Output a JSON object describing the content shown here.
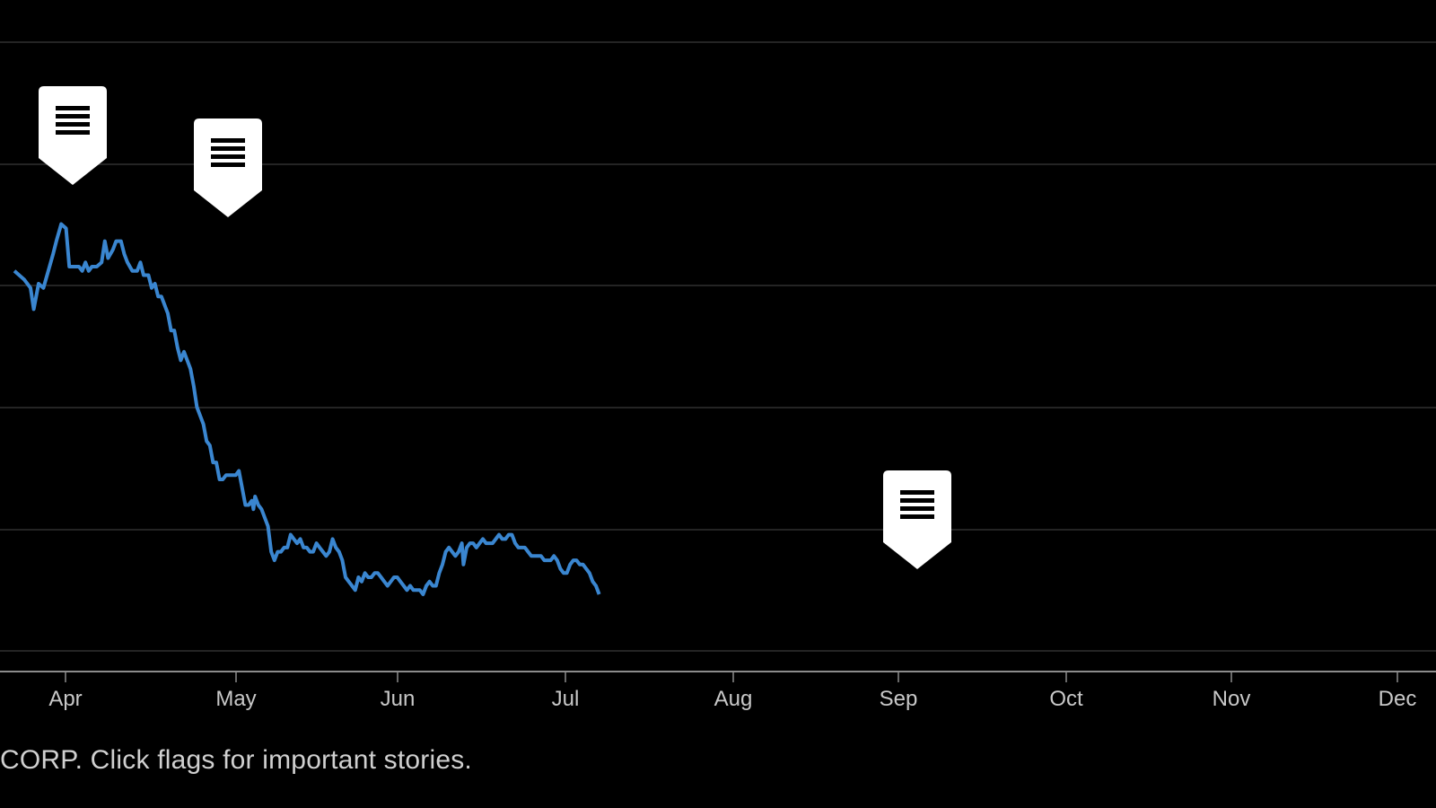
{
  "caption": "CORP. Click flags for important stories.",
  "colors": {
    "background": "#000000",
    "line": "#3a86d0",
    "grid": "#3a3a3a",
    "axis": "#8c8c8c",
    "text": "#c8c8c8",
    "flag": "#ffffff",
    "flag_icon": "#000000"
  },
  "chart_data": {
    "type": "line",
    "title": "",
    "xlabel": "",
    "ylabel": "",
    "x_tick_labels": [
      "Apr",
      "May",
      "Jun",
      "Jul",
      "Aug",
      "Sep",
      "Oct",
      "Nov",
      "Dec"
    ],
    "y_axis_labels_visible": false,
    "grid": true,
    "ylim": [
      0,
      100
    ],
    "flags": [
      {
        "date": "Apr 1",
        "icon": "news-flag-icon"
      },
      {
        "date": "Apr 30",
        "icon": "news-flag-icon"
      },
      {
        "date": "Sep 5",
        "icon": "news-flag-icon"
      }
    ],
    "series": [
      {
        "values": [
          [
            -30,
            76
          ],
          [
            -24,
            74
          ],
          [
            -20,
            72
          ],
          [
            -18,
            67
          ],
          [
            -15,
            73
          ],
          [
            -12,
            72
          ],
          [
            -9,
            76
          ],
          [
            -6,
            80
          ],
          [
            -4,
            83
          ],
          [
            -1,
            87
          ],
          [
            2,
            86
          ],
          [
            4,
            77
          ],
          [
            7,
            77
          ],
          [
            10,
            77
          ],
          [
            12,
            76
          ],
          [
            14,
            78
          ],
          [
            16,
            76
          ],
          [
            18,
            77
          ],
          [
            21,
            77
          ],
          [
            24,
            78
          ],
          [
            26,
            83
          ],
          [
            28,
            79
          ],
          [
            31,
            81
          ],
          [
            33,
            83
          ],
          [
            36,
            83
          ],
          [
            38,
            80
          ],
          [
            40,
            78
          ],
          [
            43,
            76
          ],
          [
            46,
            76
          ],
          [
            48,
            78
          ],
          [
            50,
            75
          ],
          [
            53,
            75
          ],
          [
            55,
            72
          ],
          [
            57,
            73
          ],
          [
            59,
            70
          ],
          [
            61,
            70
          ],
          [
            63,
            68
          ],
          [
            65,
            66
          ],
          [
            67,
            62
          ],
          [
            69,
            62
          ],
          [
            71,
            58
          ],
          [
            73,
            55
          ],
          [
            75,
            57
          ],
          [
            77,
            55
          ],
          [
            79,
            53
          ],
          [
            81,
            49
          ],
          [
            83,
            44
          ],
          [
            85,
            42
          ],
          [
            87,
            40
          ],
          [
            89,
            36
          ],
          [
            91,
            35
          ],
          [
            93,
            31
          ],
          [
            95,
            31
          ],
          [
            97,
            27
          ],
          [
            99,
            27
          ],
          [
            101,
            28
          ],
          [
            103,
            28
          ],
          [
            105,
            28
          ],
          [
            107,
            28
          ],
          [
            109,
            29
          ],
          [
            111,
            25
          ],
          [
            113,
            21
          ],
          [
            115,
            21
          ],
          [
            117,
            22
          ],
          [
            118,
            20
          ],
          [
            119,
            23
          ],
          [
            121,
            21
          ],
          [
            123,
            20
          ],
          [
            125,
            18
          ],
          [
            127,
            16
          ],
          [
            129,
            10
          ],
          [
            131,
            8
          ],
          [
            133,
            10
          ],
          [
            135,
            10
          ],
          [
            137,
            11
          ],
          [
            139,
            11
          ],
          [
            141,
            14
          ],
          [
            143,
            13
          ],
          [
            145,
            12
          ],
          [
            147,
            13
          ],
          [
            149,
            11
          ],
          [
            151,
            11
          ],
          [
            153,
            10
          ],
          [
            155,
            10
          ],
          [
            157,
            12
          ],
          [
            159,
            11
          ],
          [
            161,
            10
          ],
          [
            163,
            9
          ],
          [
            165,
            10
          ],
          [
            167,
            13
          ],
          [
            169,
            11
          ],
          [
            171,
            10
          ],
          [
            173,
            8
          ],
          [
            175,
            4
          ],
          [
            177,
            3
          ],
          [
            179,
            2
          ],
          [
            181,
            1
          ],
          [
            183,
            4
          ],
          [
            185,
            3
          ],
          [
            187,
            5
          ],
          [
            189,
            4
          ],
          [
            191,
            4
          ],
          [
            193,
            5
          ],
          [
            195,
            5
          ],
          [
            197,
            4
          ],
          [
            199,
            3
          ],
          [
            201,
            2
          ],
          [
            203,
            3
          ],
          [
            205,
            4
          ],
          [
            207,
            4
          ],
          [
            209,
            3
          ],
          [
            211,
            2
          ],
          [
            213,
            1
          ],
          [
            215,
            2
          ],
          [
            217,
            1
          ],
          [
            219,
            1
          ],
          [
            221,
            1
          ],
          [
            223,
            0
          ],
          [
            225,
            2
          ],
          [
            227,
            3
          ],
          [
            229,
            2
          ],
          [
            231,
            2
          ],
          [
            233,
            5
          ],
          [
            235,
            7
          ],
          [
            237,
            10
          ],
          [
            239,
            11
          ],
          [
            241,
            10
          ],
          [
            243,
            9
          ],
          [
            245,
            10
          ],
          [
            247,
            12
          ],
          [
            248,
            7
          ],
          [
            250,
            11
          ],
          [
            252,
            12
          ],
          [
            254,
            12
          ],
          [
            256,
            11
          ],
          [
            258,
            12
          ],
          [
            260,
            13
          ],
          [
            262,
            12
          ],
          [
            264,
            12
          ],
          [
            266,
            12
          ],
          [
            268,
            13
          ],
          [
            270,
            14
          ],
          [
            272,
            13
          ],
          [
            274,
            13
          ],
          [
            276,
            14
          ],
          [
            278,
            14
          ],
          [
            280,
            12
          ],
          [
            282,
            11
          ],
          [
            284,
            11
          ],
          [
            286,
            11
          ],
          [
            288,
            10
          ],
          [
            290,
            9
          ],
          [
            292,
            9
          ],
          [
            294,
            9
          ],
          [
            296,
            9
          ],
          [
            298,
            8
          ],
          [
            300,
            8
          ],
          [
            302,
            8
          ],
          [
            304,
            9
          ],
          [
            306,
            8
          ],
          [
            308,
            6
          ],
          [
            310,
            5
          ],
          [
            312,
            5
          ],
          [
            314,
            7
          ],
          [
            316,
            8
          ],
          [
            318,
            8
          ],
          [
            320,
            7
          ],
          [
            322,
            7
          ],
          [
            324,
            6
          ],
          [
            326,
            5
          ],
          [
            328,
            3
          ],
          [
            330,
            2
          ],
          [
            332,
            0
          ]
        ]
      }
    ]
  }
}
